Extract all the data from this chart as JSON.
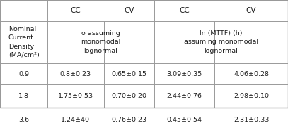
{
  "col_bounds": [
    0.0,
    0.165,
    0.36,
    0.535,
    0.745,
    1.0
  ],
  "row_bounds": [
    1.0,
    0.845,
    0.53,
    0.375,
    0.205,
    0.02
  ],
  "col_headers_row": [
    "",
    "CC",
    "CV",
    "CC",
    "CV"
  ],
  "row2_col0": "Nominal\nCurrent\nDensity\n(MA/cm²)",
  "row2_col12": "σ assuming\nmonomodal\nlognormal",
  "row2_col34": "ln (MTTF) (h)\nassuming monomodal\nlognormal",
  "data_rows": [
    [
      "0.9",
      "0.8±0.23",
      "0.65±0.15",
      "3.09±0.35",
      "4.06±0.28"
    ],
    [
      "1.8",
      "1.75±0.53",
      "0.70±0.20",
      "2.44±0.76",
      "2.98±0.10"
    ],
    [
      "3.6",
      "1.24±40",
      "0.76±0.23",
      "0.45±0.54",
      "2.31±0.33"
    ]
  ],
  "bg_color": "#ffffff",
  "text_color": "#1a1a1a",
  "line_color": "#999999",
  "font_size": 6.8,
  "header_font_size": 7.5,
  "figsize": [
    4.07,
    1.92
  ],
  "dpi": 100
}
